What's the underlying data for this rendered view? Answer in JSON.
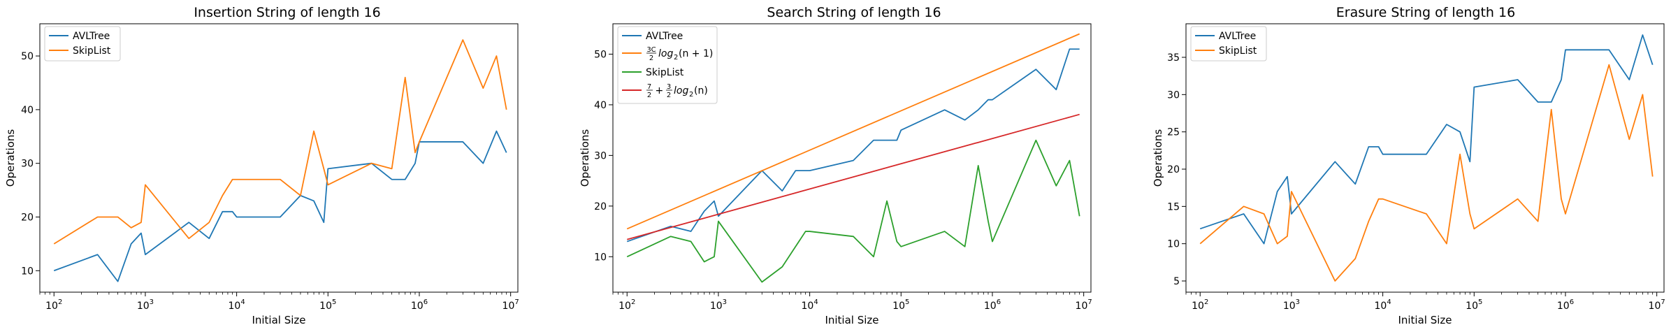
{
  "figure": {
    "background": "#ffffff",
    "colors": {
      "blue": "#1f77b4",
      "orange": "#ff7f0e",
      "green": "#2ca02c",
      "red": "#d62728"
    }
  },
  "chart_data": [
    {
      "type": "line",
      "title": "Insertion String of length 16",
      "xlabel": "Initial Size",
      "ylabel": "Operations",
      "xscale": "log",
      "xlim": [
        70,
        12000000
      ],
      "ylim": [
        6,
        56
      ],
      "xticks": [
        {
          "base": "10",
          "exp": "2"
        },
        {
          "base": "10",
          "exp": "3"
        },
        {
          "base": "10",
          "exp": "4"
        },
        {
          "base": "10",
          "exp": "5"
        },
        {
          "base": "10",
          "exp": "6"
        },
        {
          "base": "10",
          "exp": "7"
        }
      ],
      "yticks": [
        "10",
        "20",
        "30",
        "40",
        "50"
      ],
      "ytick_values": [
        10,
        20,
        30,
        40,
        50
      ],
      "grid": false,
      "legend_position": "upper-left",
      "series": [
        {
          "name": "AVLTree",
          "color": "#1f77b4",
          "x": [
            100,
            300,
            500,
            700,
            900,
            1000,
            3000,
            5000,
            7000,
            9000,
            10000,
            30000,
            50000,
            70000,
            90000,
            100000,
            300000,
            500000,
            700000,
            900000,
            1000000,
            3000000,
            5000000,
            7000000,
            9000000
          ],
          "y": [
            10,
            13,
            8,
            15,
            17,
            13,
            19,
            16,
            21,
            21,
            20,
            20,
            24,
            23,
            19,
            29,
            30,
            27,
            27,
            30,
            34,
            34,
            30,
            36,
            32
          ]
        },
        {
          "name": "SkipList",
          "color": "#ff7f0e",
          "x": [
            100,
            300,
            500,
            700,
            900,
            1000,
            3000,
            5000,
            7000,
            9000,
            10000,
            30000,
            50000,
            70000,
            90000,
            100000,
            300000,
            500000,
            700000,
            900000,
            1000000,
            3000000,
            5000000,
            7000000,
            9000000
          ],
          "y": [
            15,
            20,
            20,
            18,
            19,
            26,
            16,
            19,
            24,
            27,
            27,
            27,
            24,
            36,
            29,
            26,
            30,
            29,
            46,
            32,
            34,
            53,
            44,
            50,
            40
          ]
        }
      ]
    },
    {
      "type": "line",
      "title": "Search String of length 16",
      "xlabel": "Initial Size",
      "ylabel": "Operations",
      "xscale": "log",
      "xlim": [
        70,
        12000000
      ],
      "ylim": [
        3,
        56
      ],
      "xticks": [
        {
          "base": "10",
          "exp": "2"
        },
        {
          "base": "10",
          "exp": "3"
        },
        {
          "base": "10",
          "exp": "4"
        },
        {
          "base": "10",
          "exp": "5"
        },
        {
          "base": "10",
          "exp": "6"
        },
        {
          "base": "10",
          "exp": "7"
        }
      ],
      "yticks": [
        "10",
        "20",
        "30",
        "40",
        "50"
      ],
      "ytick_values": [
        10,
        20,
        30,
        40,
        50
      ],
      "grid": false,
      "legend_position": "upper-left",
      "series": [
        {
          "name": "AVLTree",
          "color": "#1f77b4",
          "x": [
            100,
            300,
            500,
            700,
            900,
            1000,
            3000,
            5000,
            7000,
            9000,
            10000,
            30000,
            50000,
            70000,
            90000,
            100000,
            300000,
            500000,
            700000,
            900000,
            1000000,
            3000000,
            5000000,
            7000000,
            9000000
          ],
          "y": [
            13,
            16,
            15,
            19,
            21,
            18,
            27,
            23,
            27,
            27,
            27,
            29,
            33,
            33,
            33,
            35,
            39,
            37,
            39,
            41,
            41,
            47,
            43,
            51,
            51
          ]
        },
        {
          "name": "3C/2 log2(n+1)",
          "color": "#ff7f0e",
          "x": [
            100,
            9000000
          ],
          "y": [
            15.5,
            54
          ]
        },
        {
          "name": "SkipList",
          "color": "#2ca02c",
          "x": [
            100,
            300,
            500,
            700,
            900,
            1000,
            3000,
            5000,
            7000,
            9000,
            10000,
            30000,
            50000,
            70000,
            90000,
            100000,
            300000,
            500000,
            700000,
            900000,
            1000000,
            3000000,
            5000000,
            7000000,
            9000000
          ],
          "y": [
            10,
            14,
            13,
            9,
            10,
            17,
            5,
            8,
            12,
            15,
            15,
            14,
            10,
            21,
            13,
            12,
            15,
            12,
            28,
            17,
            13,
            33,
            24,
            29,
            18
          ]
        },
        {
          "name": "7/2 + 3/2 log2(n)",
          "color": "#d62728",
          "x": [
            100,
            9000000
          ],
          "y": [
            13.4,
            38.1
          ]
        }
      ],
      "legend": [
        {
          "label": "AVLTree",
          "color": "#1f77b4"
        },
        {
          "label": "3C",
          "label_denom": "2",
          "label_rest": "log",
          "label_sub": "2",
          "label_tail": "(n + 1)",
          "color": "#ff7f0e"
        },
        {
          "label": "SkipList",
          "color": "#2ca02c"
        },
        {
          "label_num": "7",
          "label_denom": "2",
          "label_plus": " + ",
          "label_num2": "3",
          "label_denom2": "2",
          "label_rest": "log",
          "label_sub": "2",
          "label_tail": "(n)",
          "color": "#d62728"
        }
      ]
    },
    {
      "type": "line",
      "title": "Erasure String of length 16",
      "xlabel": "Initial Size",
      "ylabel": "Operations",
      "xscale": "log",
      "xlim": [
        70,
        12000000
      ],
      "ylim": [
        3.5,
        39.5
      ],
      "xticks": [
        {
          "base": "10",
          "exp": "2"
        },
        {
          "base": "10",
          "exp": "3"
        },
        {
          "base": "10",
          "exp": "4"
        },
        {
          "base": "10",
          "exp": "5"
        },
        {
          "base": "10",
          "exp": "6"
        },
        {
          "base": "10",
          "exp": "7"
        }
      ],
      "yticks": [
        "5",
        "10",
        "15",
        "20",
        "25",
        "30",
        "35"
      ],
      "ytick_values": [
        5,
        10,
        15,
        20,
        25,
        30,
        35
      ],
      "grid": false,
      "legend_position": "upper-left",
      "series": [
        {
          "name": "AVLTree",
          "color": "#1f77b4",
          "x": [
            100,
            300,
            500,
            700,
            900,
            1000,
            3000,
            5000,
            7000,
            9000,
            10000,
            30000,
            50000,
            70000,
            90000,
            100000,
            300000,
            500000,
            700000,
            900000,
            1000000,
            3000000,
            5000000,
            7000000,
            9000000
          ],
          "y": [
            12,
            14,
            10,
            17,
            19,
            14,
            21,
            18,
            23,
            23,
            22,
            22,
            26,
            25,
            21,
            31,
            32,
            29,
            29,
            32,
            36,
            36,
            32,
            38,
            34
          ]
        },
        {
          "name": "SkipList",
          "color": "#ff7f0e",
          "x": [
            100,
            300,
            500,
            700,
            900,
            1000,
            3000,
            5000,
            7000,
            9000,
            10000,
            30000,
            50000,
            70000,
            90000,
            100000,
            300000,
            500000,
            700000,
            900000,
            1000000,
            3000000,
            5000000,
            7000000,
            9000000
          ],
          "y": [
            10,
            15,
            14,
            10,
            11,
            17,
            5,
            8,
            13,
            16,
            16,
            14,
            10,
            22,
            14,
            12,
            16,
            13,
            28,
            16,
            14,
            34,
            24,
            30,
            19
          ]
        }
      ]
    }
  ]
}
